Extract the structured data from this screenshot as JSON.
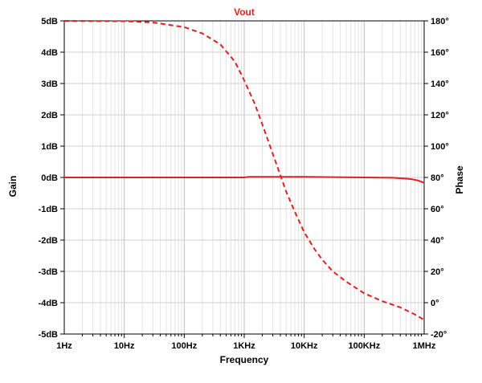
{
  "chart_data": {
    "type": "line",
    "title": "Vout",
    "xlabel": "Frequency",
    "ylabel_left": "Gain",
    "ylabel_right": "Phase",
    "x_scale": "log",
    "xlim": [
      1,
      1000000
    ],
    "ylim_left": [
      -5,
      5
    ],
    "ylim_right": [
      -20,
      180
    ],
    "grid": true,
    "x_ticks": [
      {
        "value": 1,
        "label": "1Hz"
      },
      {
        "value": 10,
        "label": "10Hz"
      },
      {
        "value": 100,
        "label": "100Hz"
      },
      {
        "value": 1000,
        "label": "1KHz"
      },
      {
        "value": 10000,
        "label": "10KHz"
      },
      {
        "value": 100000,
        "label": "100KHz"
      },
      {
        "value": 1000000,
        "label": "1MHz"
      }
    ],
    "y_left_ticks": [
      {
        "value": 5,
        "label": "5dB"
      },
      {
        "value": 4,
        "label": "4dB"
      },
      {
        "value": 3,
        "label": "3dB"
      },
      {
        "value": 2,
        "label": "2dB"
      },
      {
        "value": 1,
        "label": "1dB"
      },
      {
        "value": 0,
        "label": "0dB"
      },
      {
        "value": -1,
        "label": "-1dB"
      },
      {
        "value": -2,
        "label": "-2dB"
      },
      {
        "value": -3,
        "label": "-3dB"
      },
      {
        "value": -4,
        "label": "-4dB"
      },
      {
        "value": -5,
        "label": "-5dB"
      }
    ],
    "y_right_ticks": [
      {
        "value": 180,
        "label": "180°"
      },
      {
        "value": 160,
        "label": "160°"
      },
      {
        "value": 140,
        "label": "140°"
      },
      {
        "value": 120,
        "label": "120°"
      },
      {
        "value": 100,
        "label": "100°"
      },
      {
        "value": 80,
        "label": "80°"
      },
      {
        "value": 60,
        "label": "60°"
      },
      {
        "value": 40,
        "label": "40°"
      },
      {
        "value": 20,
        "label": "20°"
      },
      {
        "value": 0,
        "label": "0°"
      },
      {
        "value": -20,
        "label": "-20°"
      }
    ],
    "series": [
      {
        "axis": "left",
        "style": "solid",
        "color": "#e02020",
        "x": [
          1,
          10,
          100,
          1000,
          1200,
          10000,
          30000,
          100000,
          300000,
          600000,
          800000,
          1000000
        ],
        "y": [
          0,
          0,
          0,
          0,
          0.02,
          0.02,
          0.01,
          0.0,
          -0.01,
          -0.05,
          -0.1,
          -0.17
        ]
      },
      {
        "axis": "right",
        "style": "dashed",
        "color": "#e02020",
        "x": [
          1,
          10,
          30,
          100,
          200,
          400,
          700,
          1000,
          1500,
          2000,
          3000,
          4000,
          5000,
          7000,
          10000,
          15000,
          20000,
          30000,
          50000,
          100000,
          200000,
          400000,
          700000,
          1000000
        ],
        "y": [
          180,
          179.8,
          179,
          176,
          172,
          165,
          154,
          142,
          127,
          114,
          95,
          81.5,
          71,
          58,
          45,
          34,
          27.5,
          20,
          13.5,
          6,
          1,
          -3,
          -7.5,
          -11
        ]
      }
    ]
  }
}
